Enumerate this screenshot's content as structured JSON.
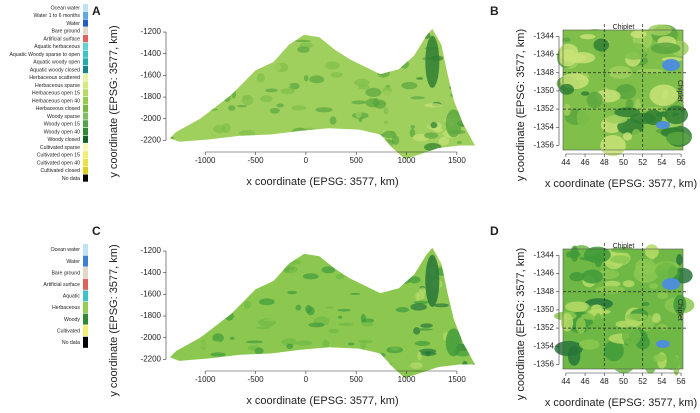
{
  "legends": [
    {
      "items": [
        {
          "name": "Ocean water",
          "color": "#bfe3f5"
        },
        {
          "name": "Water 1 to 6 months",
          "color": "#5fa8e0"
        },
        {
          "name": "Water",
          "color": "#1f5fbf"
        },
        {
          "name": "Bare ground",
          "color": "#e3d7c8"
        },
        {
          "name": "Artificial surface",
          "color": "#e0605a"
        },
        {
          "name": "Aquatic herbaceous",
          "color": "#5fd3d3"
        },
        {
          "name": "Aquatic Woody sparse to open",
          "color": "#3cc3c8"
        },
        {
          "name": "Aquatic woody open",
          "color": "#25a9b0"
        },
        {
          "name": "Aquatic woody closed",
          "color": "#14858c"
        },
        {
          "name": "Herbaceous scattered",
          "color": "#e6f2a4"
        },
        {
          "name": "Herbaceous sparse",
          "color": "#d2ea78"
        },
        {
          "name": "Herbaceous open 15",
          "color": "#b4dc62"
        },
        {
          "name": "Herbaceous open 40",
          "color": "#96cc50"
        },
        {
          "name": "Herbaceous closed",
          "color": "#78b842"
        },
        {
          "name": "Woody sparse",
          "color": "#7dc062"
        },
        {
          "name": "Woody open 15",
          "color": "#4fa547"
        },
        {
          "name": "Woody open 40",
          "color": "#2f8a35"
        },
        {
          "name": "Woody closed",
          "color": "#136326"
        },
        {
          "name": "Cultivated sparse",
          "color": "#faf7b0"
        },
        {
          "name": "Cultivated open 15",
          "color": "#f4ef72"
        },
        {
          "name": "Cultivated open 40",
          "color": "#ece243"
        },
        {
          "name": "Cultivated closed",
          "color": "#dccf1e"
        },
        {
          "name": "No data",
          "color": "#000000"
        }
      ]
    },
    {
      "items": [
        {
          "name": "Ocean water",
          "color": "#bfe3f5"
        },
        {
          "name": "Water",
          "color": "#3f7fd0"
        },
        {
          "name": "Bare ground",
          "color": "#e3d7c8"
        },
        {
          "name": "Artificial surface",
          "color": "#e0605a"
        },
        {
          "name": "Aquatic",
          "color": "#3cc3c8"
        },
        {
          "name": "Herbaceous",
          "color": "#96cc50"
        },
        {
          "name": "Woody",
          "color": "#2f8a35"
        },
        {
          "name": "Cultivated",
          "color": "#f4ef72"
        },
        {
          "name": "No data",
          "color": "#000000"
        }
      ]
    }
  ],
  "panels": [
    {
      "label": "A",
      "xlabel": "x coordinate (EPSG: 3577, km)",
      "ylabel": "y coordinate (EPSG: 3577, km)",
      "xlim": [
        -1350,
        1680
      ],
      "ylim": [
        -2270,
        -1135
      ],
      "xticks": [
        -1000,
        -500,
        0,
        500,
        1000,
        1500
      ],
      "yticks": [
        -2200,
        -2000,
        -1800,
        -1600,
        -1400,
        -1200
      ]
    },
    {
      "label": "B",
      "xlabel": "x coordinate (EPSG: 3577, km)",
      "ylabel": "y coordinate (EPSG: 3577, km)",
      "xlim": [
        43.7,
        56.2
      ],
      "ylim": [
        -1356.5,
        -1343.3
      ],
      "xticks": [
        44,
        46,
        48,
        50,
        52,
        54,
        56
      ],
      "yticks": [
        -1356,
        -1354,
        -1352,
        -1350,
        -1348,
        -1346,
        -1344
      ],
      "chiplet": {
        "label": "Chiplet",
        "x": [
          48,
          52
        ],
        "y": [
          -1352,
          -1348
        ]
      }
    },
    {
      "label": "C",
      "xlabel": "x coordinate (EPSG: 3577, km)",
      "ylabel": "y coordinate (EPSG: 3577, km)",
      "xlim": [
        -1350,
        1680
      ],
      "ylim": [
        -2270,
        -1135
      ],
      "xticks": [
        -1000,
        -500,
        0,
        500,
        1000,
        1500
      ],
      "yticks": [
        -2200,
        -2000,
        -1800,
        -1600,
        -1400,
        -1200
      ]
    },
    {
      "label": "D",
      "xlabel": "x coordinate (EPSG: 3577, km)",
      "ylabel": "y coordinate (EPSG: 3577, km)",
      "xlim": [
        43.7,
        56.2
      ],
      "ylim": [
        -1356.5,
        -1343.3
      ],
      "xticks": [
        44,
        46,
        48,
        50,
        52,
        54,
        56
      ],
      "yticks": [
        -1356,
        -1354,
        -1352,
        -1350,
        -1348,
        -1346,
        -1344
      ],
      "chiplet": {
        "label": "Chiplet",
        "x": [
          48,
          52
        ],
        "y": [
          -1352,
          -1348
        ]
      }
    }
  ]
}
